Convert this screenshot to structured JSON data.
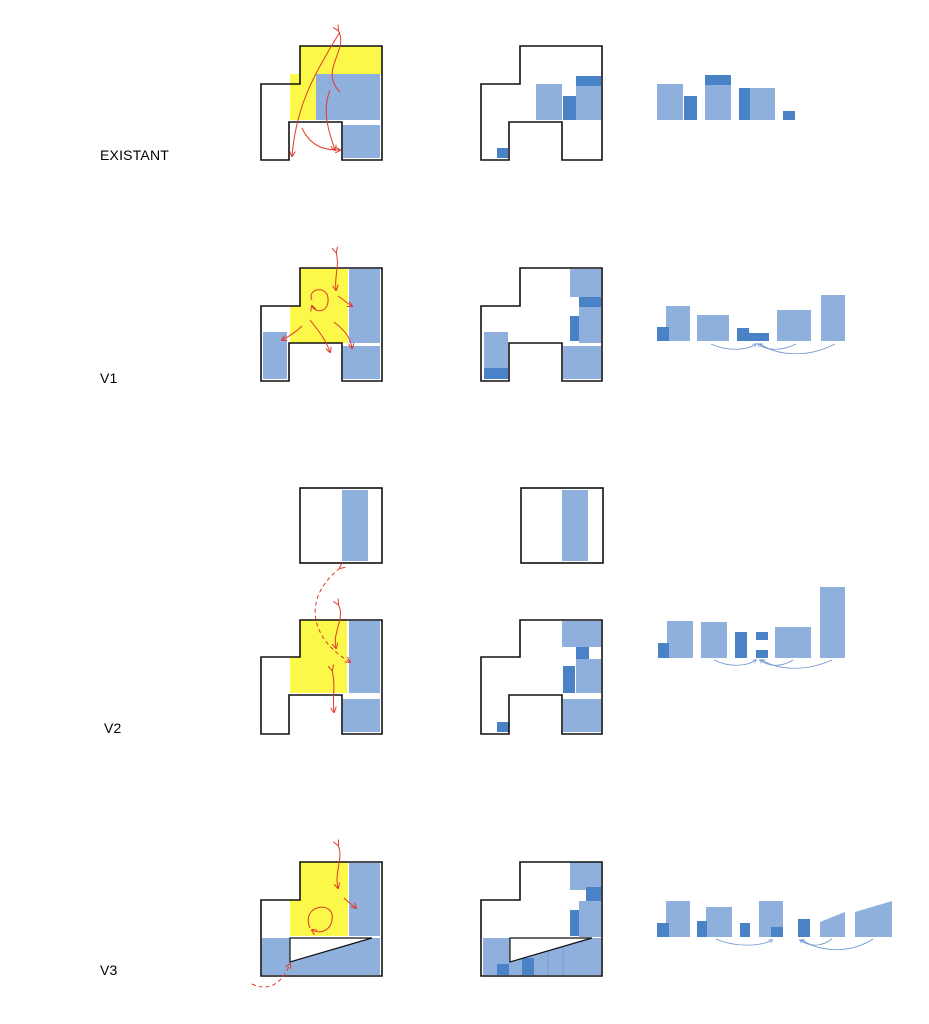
{
  "rows": [
    {
      "label": "EXISTANT"
    },
    {
      "label": "V1"
    },
    {
      "label": "V2"
    },
    {
      "label": "V3"
    }
  ],
  "colors": {
    "wall": "#111111",
    "circulation": "#fbf84a",
    "room": "#8fb0dc",
    "room_dark": "#4a82c8",
    "arrow": "#e03a2a",
    "link": "#6e95cc"
  }
}
